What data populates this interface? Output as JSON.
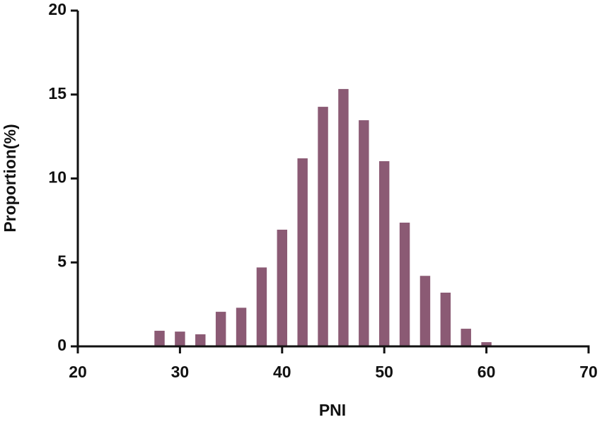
{
  "chart_data": {
    "type": "bar",
    "x_label": "PNI",
    "y_label": "Proportion(%)",
    "x": [
      28,
      30,
      32,
      34,
      36,
      38,
      40,
      42,
      44,
      46,
      48,
      50,
      52,
      54,
      56,
      58,
      60,
      62
    ],
    "values": [
      0.93,
      0.88,
      0.72,
      2.06,
      2.3,
      4.7,
      6.95,
      11.2,
      14.27,
      15.33,
      13.47,
      11.03,
      7.37,
      4.2,
      3.2,
      1.05,
      0.25,
      0.05
    ],
    "color": "#8b5a74",
    "xlim": [
      20,
      70
    ],
    "xticks": [
      20,
      30,
      40,
      50,
      60,
      70
    ],
    "ylim": [
      0,
      20
    ],
    "yticks": [
      0,
      5,
      10,
      15,
      20
    ],
    "grid": false
  }
}
